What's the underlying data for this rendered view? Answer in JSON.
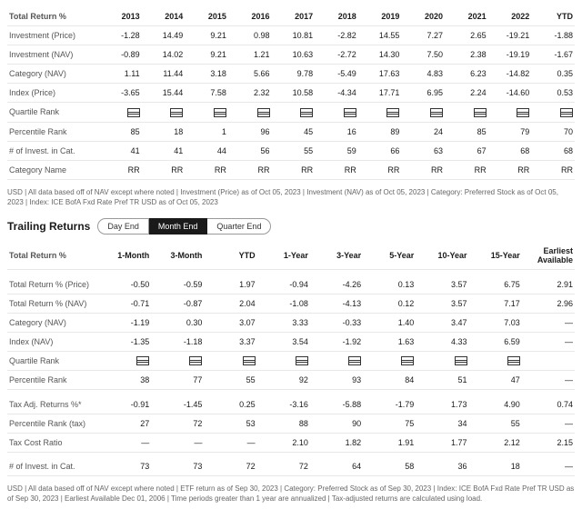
{
  "table1": {
    "header": [
      "Total Return %",
      "2013",
      "2014",
      "2015",
      "2016",
      "2017",
      "2018",
      "2019",
      "2020",
      "2021",
      "2022",
      "YTD"
    ],
    "rows": [
      [
        "Investment (Price)",
        "-1.28",
        "14.49",
        "9.21",
        "0.98",
        "10.81",
        "-2.82",
        "14.55",
        "7.27",
        "2.65",
        "-19.21",
        "-1.88"
      ],
      [
        "Investment (NAV)",
        "-0.89",
        "14.02",
        "9.21",
        "1.21",
        "10.63",
        "-2.72",
        "14.30",
        "7.50",
        "2.38",
        "-19.19",
        "-1.67"
      ],
      [
        "Category (NAV)",
        "1.11",
        "11.44",
        "3.18",
        "5.66",
        "9.78",
        "-5.49",
        "17.63",
        "4.83",
        "6.23",
        "-14.82",
        "0.35"
      ],
      [
        "Index (Price)",
        "-3.65",
        "15.44",
        "7.58",
        "2.32",
        "10.58",
        "-4.34",
        "17.71",
        "6.95",
        "2.24",
        "-14.60",
        "0.53"
      ],
      [
        "Quartile Rank",
        "Q",
        "Q",
        "Q",
        "Q",
        "Q",
        "Q",
        "Q",
        "Q",
        "Q",
        "Q",
        "Q"
      ],
      [
        "Percentile Rank",
        "85",
        "18",
        "1",
        "96",
        "45",
        "16",
        "89",
        "24",
        "85",
        "79",
        "70"
      ],
      [
        "# of Invest. in Cat.",
        "41",
        "41",
        "44",
        "56",
        "55",
        "59",
        "66",
        "63",
        "67",
        "68",
        "68"
      ],
      [
        "Category Name",
        "RR",
        "RR",
        "RR",
        "RR",
        "RR",
        "RR",
        "RR",
        "RR",
        "RR",
        "RR",
        "RR"
      ]
    ]
  },
  "footnote1": "USD | All data based off of NAV except where noted | Investment (Price) as of Oct 05, 2023 | Investment (NAV) as of Oct 05, 2023 | Category: Preferred Stock as of Oct 05, 2023 | Index: ICE BofA Fxd Rate Pref TR USD as of Oct 05, 2023",
  "trailing": {
    "title": "Trailing Returns",
    "tabs": [
      "Day End",
      "Month End",
      "Quarter End"
    ],
    "active": 1
  },
  "table2": {
    "header": [
      "Total Return %",
      "1-Month",
      "3-Month",
      "YTD",
      "1-Year",
      "3-Year",
      "5-Year",
      "10-Year",
      "15-Year",
      "Earliest Available"
    ],
    "rows": [
      [
        "Total Return % (Price)",
        "-0.50",
        "-0.59",
        "1.97",
        "-0.94",
        "-4.26",
        "0.13",
        "3.57",
        "6.75",
        "2.91"
      ],
      [
        "Total Return % (NAV)",
        "-0.71",
        "-0.87",
        "2.04",
        "-1.08",
        "-4.13",
        "0.12",
        "3.57",
        "7.17",
        "2.96"
      ],
      [
        "Category (NAV)",
        "-1.19",
        "0.30",
        "3.07",
        "3.33",
        "-0.33",
        "1.40",
        "3.47",
        "7.03",
        "—"
      ],
      [
        "Index (NAV)",
        "-1.35",
        "-1.18",
        "3.37",
        "3.54",
        "-1.92",
        "1.63",
        "4.33",
        "6.59",
        "—"
      ],
      [
        "Quartile Rank",
        "Q",
        "Q",
        "Q",
        "Q",
        "Q",
        "Q",
        "Q",
        "Q",
        ""
      ],
      [
        "Percentile Rank",
        "38",
        "77",
        "55",
        "92",
        "93",
        "84",
        "51",
        "47",
        "—"
      ]
    ],
    "rows2": [
      [
        "Tax Adj. Returns %*",
        "-0.91",
        "-1.45",
        "0.25",
        "-3.16",
        "-5.88",
        "-1.79",
        "1.73",
        "4.90",
        "0.74"
      ],
      [
        "Percentile Rank (tax)",
        "27",
        "72",
        "53",
        "88",
        "90",
        "75",
        "34",
        "55",
        "—"
      ],
      [
        "Tax Cost Ratio",
        "—",
        "—",
        "—",
        "2.10",
        "1.82",
        "1.91",
        "1.77",
        "2.12",
        "2.15"
      ]
    ],
    "rows3": [
      [
        "# of Invest. in Cat.",
        "73",
        "73",
        "72",
        "72",
        "64",
        "58",
        "36",
        "18",
        "—"
      ]
    ]
  },
  "footnote2": "USD | All data based off of NAV except where noted | ETF return as of Sep 30, 2023 | Category: Preferred Stock as of Sep 30, 2023 | Index: ICE BofA Fxd Rate Pref TR USD as of Sep 30, 2023 | Earliest Available Dec 01, 2006 | Time periods greater than 1 year are annualized | Tax-adjusted returns are calculated using load."
}
